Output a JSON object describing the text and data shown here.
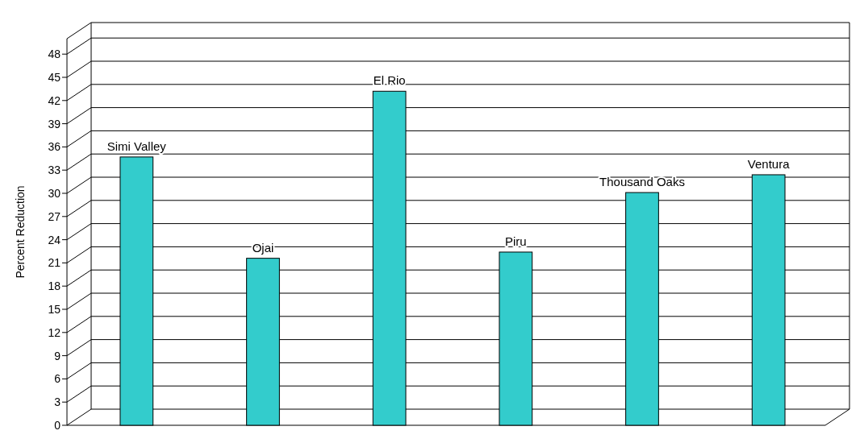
{
  "chart_data": {
    "type": "bar",
    "ylabel": "Percent Reduction",
    "categories": [
      "Simi Valley",
      "Ojai",
      "El Rio",
      "Piru",
      "Thousand Oaks",
      "Ventura"
    ],
    "values": [
      34.7,
      21.6,
      43.2,
      22.4,
      30.1,
      32.4
    ],
    "color": "#33cccc",
    "ylim": [
      0,
      50
    ],
    "yticks": [
      0,
      3,
      6,
      9,
      12,
      15,
      18,
      21,
      24,
      27,
      30,
      33,
      36,
      39,
      42,
      45,
      48
    ],
    "grid": "y"
  }
}
